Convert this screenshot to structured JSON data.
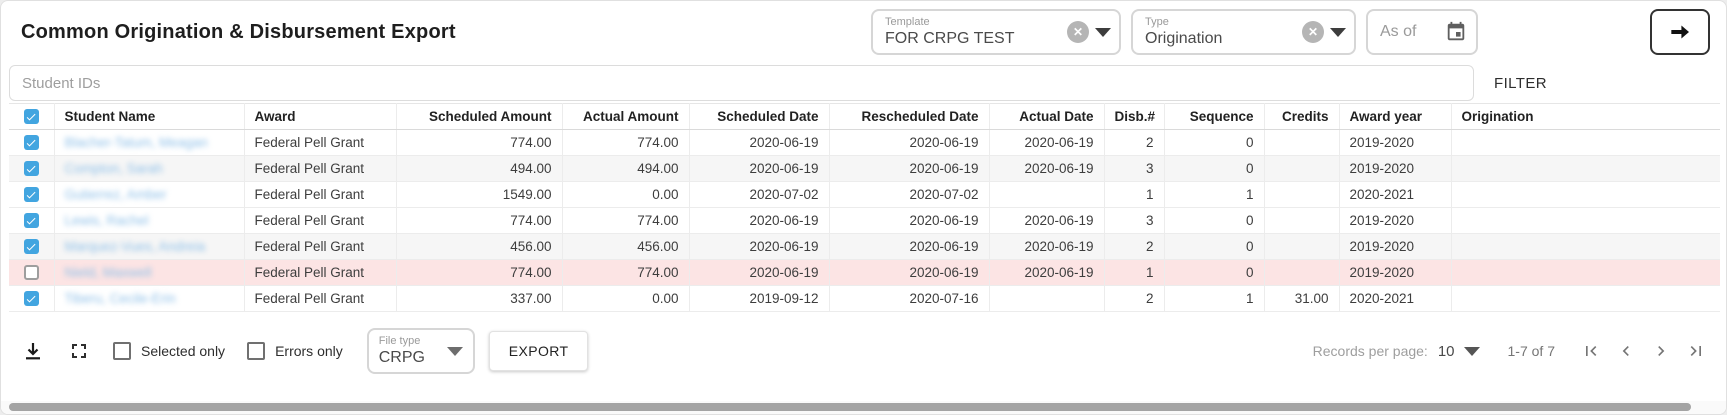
{
  "header": {
    "title": "Common Origination & Disbursement Export",
    "template_field": {
      "label": "Template",
      "value": "FOR CRPG TEST"
    },
    "type_field": {
      "label": "Type",
      "value": "Origination"
    },
    "as_of_field": {
      "placeholder": "As of"
    }
  },
  "search": {
    "placeholder": "Student IDs",
    "filter_label": "FILTER"
  },
  "table": {
    "columns": [
      {
        "key": "select",
        "label": "",
        "align": "center",
        "type": "checkbox"
      },
      {
        "key": "name",
        "label": "Student Name",
        "align": "left"
      },
      {
        "key": "award",
        "label": "Award",
        "align": "left"
      },
      {
        "key": "scheduled_amount",
        "label": "Scheduled Amount",
        "align": "right"
      },
      {
        "key": "actual_amount",
        "label": "Actual Amount",
        "align": "right"
      },
      {
        "key": "scheduled_date",
        "label": "Scheduled Date",
        "align": "right"
      },
      {
        "key": "rescheduled_date",
        "label": "Rescheduled Date",
        "align": "right"
      },
      {
        "key": "actual_date",
        "label": "Actual Date",
        "align": "right"
      },
      {
        "key": "disb",
        "label": "Disb.#",
        "align": "right"
      },
      {
        "key": "sequence",
        "label": "Sequence",
        "align": "right"
      },
      {
        "key": "credits",
        "label": "Credits",
        "align": "right"
      },
      {
        "key": "award_year",
        "label": "Award year",
        "align": "left"
      },
      {
        "key": "origination",
        "label": "Origination",
        "align": "left"
      }
    ],
    "select_all_checked": true,
    "rows": [
      {
        "checked": true,
        "error": false,
        "shaded": false,
        "name": "Blacher-Tatum, Meagan",
        "award": "Federal Pell Grant",
        "scheduled_amount": "774.00",
        "actual_amount": "774.00",
        "scheduled_date": "2020-06-19",
        "rescheduled_date": "2020-06-19",
        "actual_date": "2020-06-19",
        "disb": "2",
        "sequence": "0",
        "credits": "",
        "award_year": "2019-2020",
        "origination": ""
      },
      {
        "checked": true,
        "error": false,
        "shaded": true,
        "name": "Compton, Sarah",
        "award": "Federal Pell Grant",
        "scheduled_amount": "494.00",
        "actual_amount": "494.00",
        "scheduled_date": "2020-06-19",
        "rescheduled_date": "2020-06-19",
        "actual_date": "2020-06-19",
        "disb": "3",
        "sequence": "0",
        "credits": "",
        "award_year": "2019-2020",
        "origination": ""
      },
      {
        "checked": true,
        "error": false,
        "shaded": false,
        "name": "Gutierrez, Amber",
        "award": "Federal Pell Grant",
        "scheduled_amount": "1549.00",
        "actual_amount": "0.00",
        "scheduled_date": "2020-07-02",
        "rescheduled_date": "2020-07-02",
        "actual_date": "",
        "disb": "1",
        "sequence": "1",
        "credits": "",
        "award_year": "2020-2021",
        "origination": ""
      },
      {
        "checked": true,
        "error": false,
        "shaded": false,
        "name": "Lewis, Rachel",
        "award": "Federal Pell Grant",
        "scheduled_amount": "774.00",
        "actual_amount": "774.00",
        "scheduled_date": "2020-06-19",
        "rescheduled_date": "2020-06-19",
        "actual_date": "2020-06-19",
        "disb": "3",
        "sequence": "0",
        "credits": "",
        "award_year": "2019-2020",
        "origination": ""
      },
      {
        "checked": true,
        "error": false,
        "shaded": true,
        "name": "Marquez-Vues, Andreia",
        "award": "Federal Pell Grant",
        "scheduled_amount": "456.00",
        "actual_amount": "456.00",
        "scheduled_date": "2020-06-19",
        "rescheduled_date": "2020-06-19",
        "actual_date": "2020-06-19",
        "disb": "2",
        "sequence": "0",
        "credits": "",
        "award_year": "2019-2020",
        "origination": ""
      },
      {
        "checked": false,
        "error": true,
        "shaded": false,
        "name": "Nield, Maxwell",
        "award": "Federal Pell Grant",
        "scheduled_amount": "774.00",
        "actual_amount": "774.00",
        "scheduled_date": "2020-06-19",
        "rescheduled_date": "2020-06-19",
        "actual_date": "2020-06-19",
        "disb": "1",
        "sequence": "0",
        "credits": "",
        "award_year": "2019-2020",
        "origination": ""
      },
      {
        "checked": true,
        "error": false,
        "shaded": false,
        "name": "Tiberu, Cecile-Erin",
        "award": "Federal Pell Grant",
        "scheduled_amount": "337.00",
        "actual_amount": "0.00",
        "scheduled_date": "2019-09-12",
        "rescheduled_date": "2020-07-16",
        "actual_date": "",
        "disb": "2",
        "sequence": "1",
        "credits": "31.00",
        "award_year": "2020-2021",
        "origination": ""
      }
    ]
  },
  "footer": {
    "selected_only_label": "Selected only",
    "errors_only_label": "Errors only",
    "file_type": {
      "label": "File type",
      "value": "CRPG"
    },
    "export_label": "EXPORT",
    "records_per_page_label": "Records per page:",
    "records_per_page_value": "10",
    "range_label": "1-7 of 7"
  },
  "icons": {
    "clear": "circle with white x",
    "caret_down": "solid down triangle",
    "calendar": "calendar glyph",
    "go_arrow": "right arrow in outlined button",
    "download": "down arrow with underline",
    "fullscreen": "four corner brackets",
    "first_page": "bar + left chevron",
    "prev_page": "left chevron",
    "next_page": "right chevron",
    "last_page": "right chevron + bar"
  },
  "colors": {
    "accent_checkbox_blue": "#42a5e0",
    "error_row_pink": "#fce4e4",
    "student_link_blue": "#8fc0e8"
  }
}
